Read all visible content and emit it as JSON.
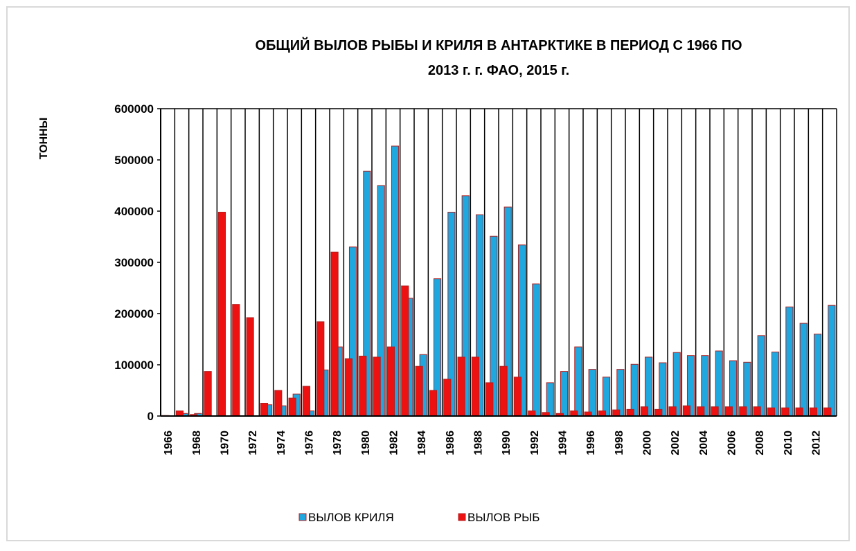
{
  "chart_data": {
    "type": "bar",
    "title": [
      "ОБЩИЙ ВЫЛОВ РЫБЫ И  КРИЛЯ В АНТАРКТИКЕ В ПЕРИОД С 1966 ПО",
      "2013 г. г. ФАО, 2015 г."
    ],
    "y_label": "ТОННЫ",
    "categories": [
      "1966",
      null,
      "1968",
      null,
      "1970",
      null,
      "1972",
      null,
      "1974",
      null,
      "1976",
      null,
      "1978",
      null,
      "1980",
      null,
      "1982",
      null,
      "1984",
      null,
      "1986",
      null,
      "1988",
      null,
      "1990",
      null,
      "1992",
      null,
      "1994",
      null,
      "1996",
      null,
      "1998",
      null,
      "2000",
      null,
      "2002",
      null,
      "2004",
      null,
      "2006",
      null,
      "2008",
      null,
      "2010",
      null,
      "2012",
      null
    ],
    "series": [
      {
        "name": "ВЫЛОВ КРИЛЯ",
        "color": "#1fa8e0",
        "values": [
          0,
          5000,
          5000,
          0,
          0,
          0,
          0,
          22000,
          20000,
          43000,
          10000,
          90000,
          135000,
          330000,
          478000,
          450000,
          527000,
          230000,
          120000,
          268000,
          398000,
          430000,
          393000,
          351000,
          408000,
          334000,
          258000,
          65000,
          87000,
          135000,
          91000,
          76000,
          91000,
          101000,
          115000,
          104000,
          124000,
          118000,
          118000,
          127000,
          108000,
          105000,
          157000,
          125000,
          213000,
          181000,
          160000,
          216000
        ]
      },
      {
        "name": "ВЫЛОВ РЫБ",
        "color": "#ee1111",
        "values": [
          1000,
          10000,
          3000,
          87000,
          398000,
          218000,
          192000,
          25000,
          50000,
          35000,
          58000,
          184000,
          320000,
          112000,
          117000,
          115000,
          135000,
          254000,
          97000,
          50000,
          72000,
          115000,
          115000,
          65000,
          97000,
          76000,
          10000,
          7000,
          5000,
          10000,
          8000,
          10000,
          12000,
          13000,
          18000,
          13000,
          18000,
          20000,
          18000,
          18000,
          18000,
          18000,
          18000,
          16000,
          16000,
          16000,
          16000,
          16000
        ]
      }
    ],
    "ylim": [
      0,
      600000
    ],
    "yticks": [
      0,
      100000,
      200000,
      300000,
      400000,
      500000,
      600000
    ],
    "legend": "bottom"
  }
}
